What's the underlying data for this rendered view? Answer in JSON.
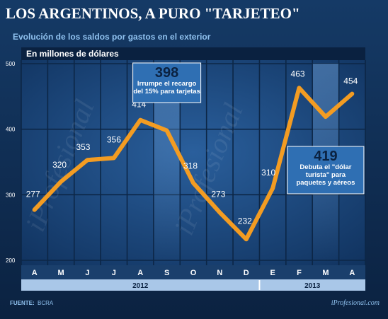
{
  "header": {
    "title": "LOS ARGENTINOS, A PURO \"TARJETEO\"",
    "subtitle": "Evolución de los saldos por gastos en el exterior",
    "unit_label": "En millones de dólares"
  },
  "footer": {
    "source": "FUENTE:",
    "source_name": "BCRA",
    "brand": "iProfesional.com",
    "watermark": "iProfesional"
  },
  "chart_data": {
    "type": "line",
    "title": "LOS ARGENTINOS, A PURO \"TARJETEO\"",
    "subtitle": "Evolución de los saldos por gastos en el exterior",
    "ylabel": "En millones de dólares",
    "ylim": [
      200,
      500
    ],
    "yticks": [
      200,
      300,
      400,
      500
    ],
    "grid": true,
    "categories": [
      "A",
      "M",
      "J",
      "J",
      "A",
      "S",
      "O",
      "N",
      "D",
      "E",
      "F",
      "M",
      "A"
    ],
    "years": [
      {
        "label": "2012",
        "from": 0,
        "to": 8
      },
      {
        "label": "2013",
        "from": 9,
        "to": 12
      }
    ],
    "series": [
      {
        "values": [
          277,
          320,
          353,
          356,
          414,
          398,
          318,
          273,
          232,
          310,
          463,
          419,
          454
        ],
        "labels": [
          "277",
          "320",
          "353",
          "356",
          "414",
          "",
          "318",
          "273",
          "232",
          "310",
          "463",
          "",
          "454"
        ],
        "color": "#f39c22"
      }
    ],
    "annotations": [
      {
        "index": 5,
        "value": "398",
        "lines": [
          "Irrumpe el recargo",
          "del 15% para tarjetas"
        ]
      },
      {
        "index": 11,
        "value": "419",
        "lines": [
          "Debuta el \"dólar",
          "turista\" para",
          "paquetes y aéreos"
        ]
      }
    ]
  },
  "colors": {
    "background": "#0e2a4f",
    "plot": "#16437a",
    "line": "#f39c22",
    "annotation_box": "#2f6fb3",
    "axis_bar": "#a9c7e8",
    "title": "#ffffff",
    "subtitle": "#8fc1ee"
  }
}
